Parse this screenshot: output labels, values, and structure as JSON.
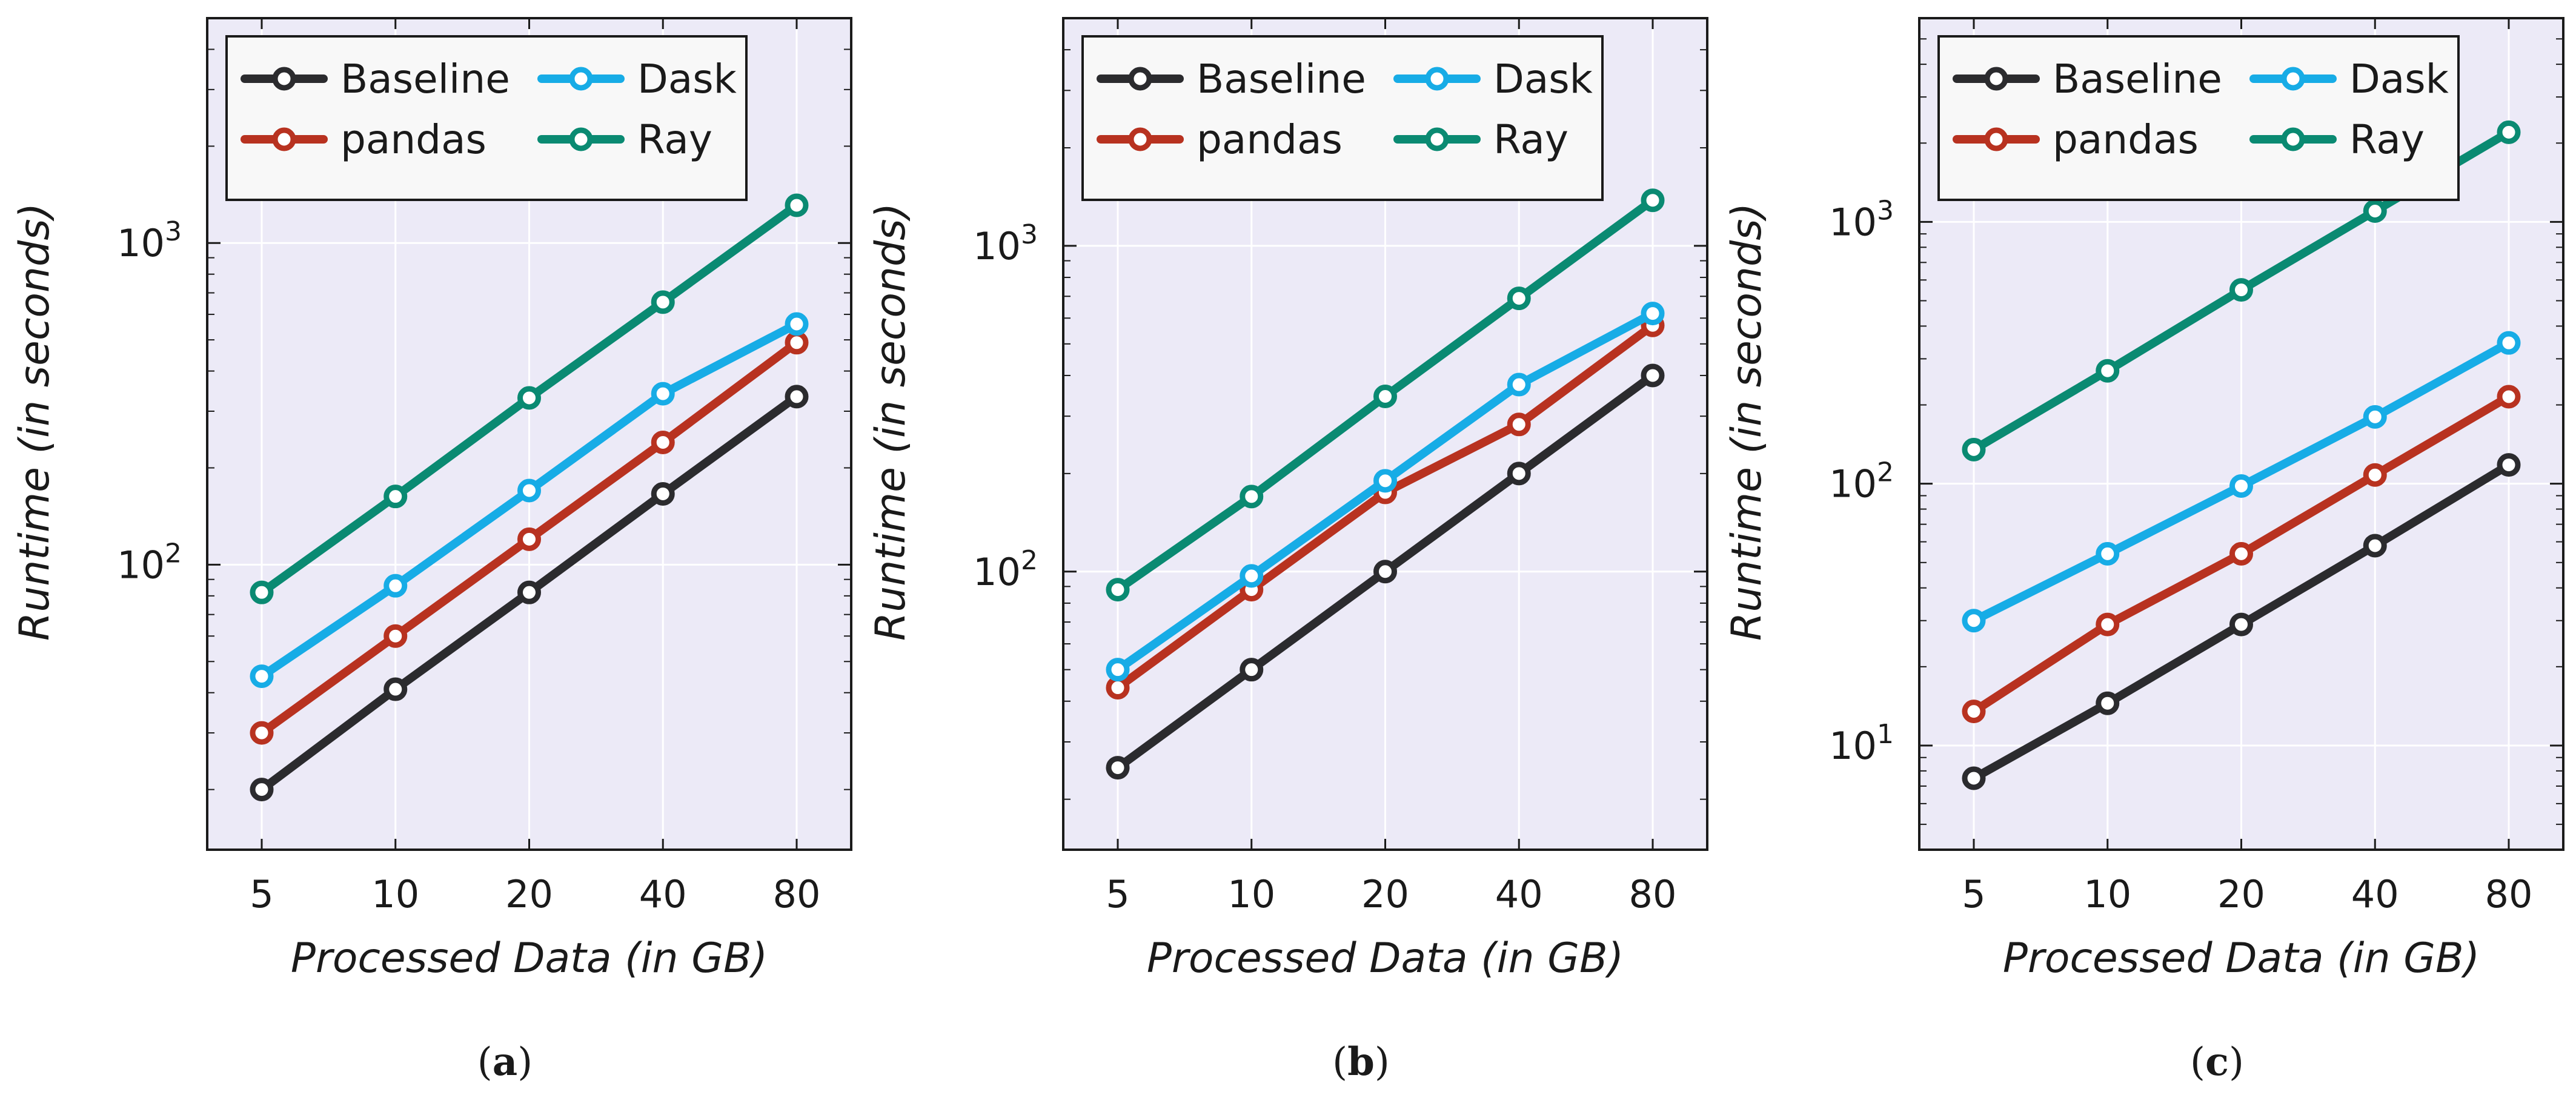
{
  "colors": {
    "Baseline": "#2b2b2e",
    "pandas": "#b83220",
    "Dask": "#17ace6",
    "Ray": "#0a8a72"
  },
  "chart_data": [
    {
      "type": "line",
      "panel_label": "a",
      "title": "",
      "xlabel": "Processed Data (in GB)",
      "ylabel": "Runtime (in seconds)",
      "yscale": "log",
      "ylim": [
        13,
        5000
      ],
      "yticks": [
        {
          "value": 100,
          "base": "10",
          "exp": "2"
        },
        {
          "value": 1000,
          "base": "10",
          "exp": "3"
        }
      ],
      "categories": [
        "5",
        "10",
        "20",
        "40",
        "80"
      ],
      "legend_position": "top-left",
      "series": [
        {
          "name": "Baseline",
          "values": [
            20,
            41,
            82,
            166,
            333
          ]
        },
        {
          "name": "pandas",
          "values": [
            30,
            60,
            120,
            240,
            490
          ]
        },
        {
          "name": "Dask",
          "values": [
            45,
            86,
            170,
            340,
            560
          ]
        },
        {
          "name": "Ray",
          "values": [
            82,
            163,
            330,
            655,
            1310
          ]
        }
      ]
    },
    {
      "type": "line",
      "panel_label": "b",
      "title": "",
      "xlabel": "Processed Data (in GB)",
      "ylabel": "Runtime (in seconds)",
      "yscale": "log",
      "ylim": [
        14,
        5000
      ],
      "yticks": [
        {
          "value": 100,
          "base": "10",
          "exp": "2"
        },
        {
          "value": 1000,
          "base": "10",
          "exp": "3"
        }
      ],
      "categories": [
        "5",
        "10",
        "20",
        "40",
        "80"
      ],
      "legend_position": "top-left",
      "series": [
        {
          "name": "Baseline",
          "values": [
            25,
            50,
            100,
            200,
            400
          ]
        },
        {
          "name": "pandas",
          "values": [
            44,
            88,
            175,
            283,
            570
          ]
        },
        {
          "name": "Dask",
          "values": [
            50,
            97,
            190,
            375,
            620
          ]
        },
        {
          "name": "Ray",
          "values": [
            88,
            170,
            345,
            690,
            1380
          ]
        }
      ]
    },
    {
      "type": "line",
      "panel_label": "c",
      "title": "",
      "xlabel": "Processed Data (in GB)",
      "ylabel": "Runtime (in seconds)",
      "yscale": "log",
      "ylim": [
        4,
        6000
      ],
      "yticks": [
        {
          "value": 10,
          "base": "10",
          "exp": "1"
        },
        {
          "value": 100,
          "base": "10",
          "exp": "2"
        },
        {
          "value": 1000,
          "base": "10",
          "exp": "3"
        }
      ],
      "categories": [
        "5",
        "10",
        "20",
        "40",
        "80"
      ],
      "legend_position": "top-left",
      "series": [
        {
          "name": "Baseline",
          "values": [
            7.5,
            14.5,
            29,
            58,
            118
          ]
        },
        {
          "name": "pandas",
          "values": [
            13.5,
            29,
            54,
            108,
            215
          ]
        },
        {
          "name": "Dask",
          "values": [
            30,
            54,
            98,
            180,
            345
          ]
        },
        {
          "name": "Ray",
          "values": [
            135,
            270,
            550,
            1100,
            2200
          ]
        }
      ]
    }
  ]
}
